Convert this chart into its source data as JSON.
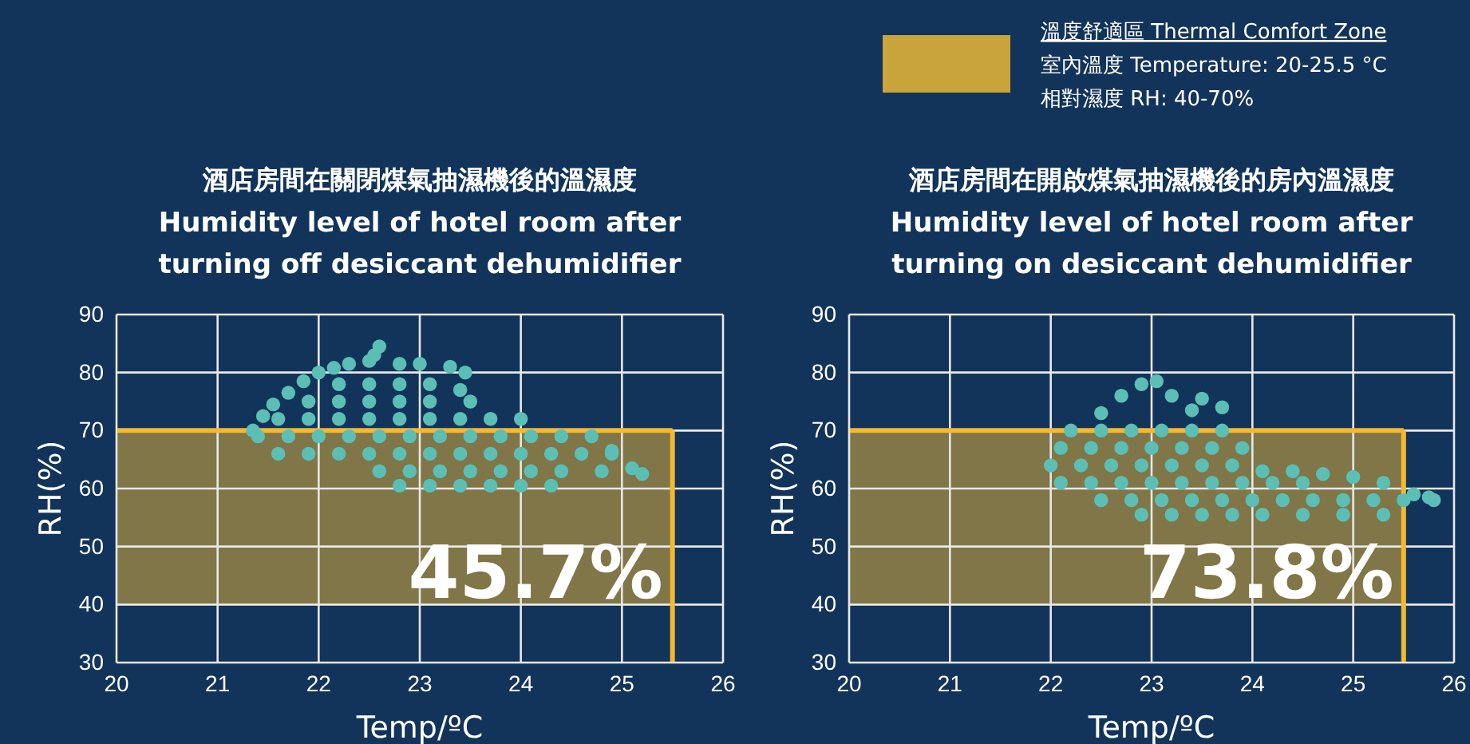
{
  "chart_data": [
    {
      "type": "scatter",
      "title": "酒店房間在關閉煤氣抽濕機後的溫濕度",
      "subtitle": "Humidity level of hotel room after\nturning off desiccant dehumidifier",
      "xlabel": "Temp/ºC",
      "ylabel": "RH(%)",
      "xlim": [
        20,
        26
      ],
      "ylim": [
        30,
        90
      ],
      "xticks": [
        20,
        21,
        22,
        23,
        24,
        25,
        26
      ],
      "yticks": [
        30,
        40,
        50,
        60,
        70,
        80,
        90
      ],
      "grid": true,
      "marker": "circle",
      "bands": [
        {
          "axis": "y",
          "from": 40,
          "to": 70,
          "color": "#c9a43a"
        }
      ],
      "ref_lines": [
        {
          "axis": "x",
          "value": 25.5,
          "color": "#f5b82e"
        },
        {
          "axis": "y",
          "value": 70,
          "color": "#f5b82e"
        }
      ],
      "annotations": [
        "45.7%"
      ],
      "series": [
        {
          "color": "#5bbfb5",
          "x": [
            21.35,
            21.45,
            21.55,
            21.7,
            21.85,
            22.0,
            22.15,
            22.3,
            22.5,
            22.6,
            22.55,
            22.8,
            23.0,
            23.3,
            23.45,
            23.4,
            23.5,
            22.2,
            22.5,
            22.8,
            23.1,
            21.9,
            22.2,
            22.5,
            22.8,
            23.1,
            21.6,
            21.9,
            22.2,
            22.5,
            22.8,
            23.1,
            23.4,
            23.7,
            24.0,
            21.4,
            21.7,
            22.0,
            22.3,
            22.6,
            22.9,
            23.2,
            23.5,
            23.8,
            24.1,
            24.4,
            24.7,
            21.6,
            21.9,
            22.2,
            22.5,
            22.8,
            23.1,
            23.4,
            23.7,
            24.0,
            24.3,
            24.6,
            24.9,
            22.6,
            22.9,
            23.2,
            23.5,
            23.8,
            24.1,
            24.4,
            24.8,
            25.2,
            22.8,
            23.1,
            23.4,
            23.7,
            24.0,
            24.3,
            24.9,
            25.1
          ],
          "values": [
            70,
            72.5,
            74.5,
            76.5,
            78.5,
            80,
            80.8,
            81.5,
            82,
            84.5,
            83,
            81.5,
            81.5,
            81,
            80,
            77,
            75,
            78,
            78,
            78,
            78,
            75,
            75,
            75,
            75,
            75,
            72,
            72,
            72,
            72,
            72,
            72,
            72,
            72,
            72,
            69,
            69,
            69,
            69,
            69,
            69,
            69,
            69,
            69,
            69,
            69,
            69,
            66,
            66,
            66,
            66,
            66,
            66,
            66,
            66,
            66,
            66,
            66,
            66,
            63,
            63,
            63,
            63,
            63,
            63,
            63,
            63,
            62.5,
            60.5,
            60.5,
            60.5,
            60.5,
            60.5,
            60.5,
            66.5,
            63.5
          ]
        }
      ]
    },
    {
      "type": "scatter",
      "title": "酒店房間在開啟煤氣抽濕機後的房內溫濕度",
      "subtitle": "Humidity level of hotel room after\nturning on desiccant dehumidifier",
      "xlabel": "Temp/ºC",
      "ylabel": "RH(%)",
      "xlim": [
        20,
        26
      ],
      "ylim": [
        30,
        90
      ],
      "xticks": [
        20,
        21,
        22,
        23,
        24,
        25,
        26
      ],
      "yticks": [
        30,
        40,
        50,
        60,
        70,
        80,
        90
      ],
      "grid": true,
      "marker": "circle",
      "bands": [
        {
          "axis": "y",
          "from": 40,
          "to": 70,
          "color": "#c9a43a"
        }
      ],
      "ref_lines": [
        {
          "axis": "x",
          "value": 25.5,
          "color": "#f5b82e"
        },
        {
          "axis": "y",
          "value": 70,
          "color": "#f5b82e"
        }
      ],
      "annotations": [
        "73.8%",
        "溫度舒適區 Thermal Comfort Zone",
        "室內溫度 Temperature: 20-25.5 °C",
        "相對濕度 RH: 40-70%"
      ],
      "series": [
        {
          "color": "#5bbfb5",
          "x": [
            22.5,
            22.7,
            22.9,
            23.05,
            23.2,
            23.5,
            23.7,
            23.4,
            22.2,
            22.5,
            22.8,
            23.1,
            23.4,
            23.7,
            22.1,
            22.4,
            22.7,
            23.0,
            23.3,
            23.6,
            23.9,
            22.0,
            22.3,
            22.6,
            22.9,
            23.2,
            23.5,
            23.8,
            24.1,
            24.4,
            24.7,
            25.0,
            25.3,
            22.1,
            22.4,
            22.7,
            23.0,
            23.3,
            23.6,
            23.9,
            24.2,
            24.5,
            22.5,
            22.8,
            23.1,
            23.4,
            23.7,
            24.0,
            24.3,
            24.6,
            24.9,
            25.2,
            25.5,
            25.8,
            22.9,
            23.2,
            23.5,
            23.8,
            24.1,
            24.5,
            24.9,
            25.3,
            25.6,
            25.75
          ],
          "values": [
            73,
            76,
            78,
            78.5,
            76,
            75.5,
            74,
            73.5,
            70,
            70,
            70,
            70,
            70,
            70,
            67,
            67,
            67,
            67,
            67,
            67,
            67,
            64,
            64,
            64,
            64,
            64,
            64,
            64,
            63,
            63,
            62.5,
            62,
            61,
            61,
            61,
            61,
            61,
            61,
            61,
            61,
            61,
            61,
            58,
            58,
            58,
            58,
            58,
            58,
            58,
            58,
            58,
            58,
            58,
            58,
            55.5,
            55.5,
            55.5,
            55.5,
            55.5,
            55.5,
            55.5,
            55.5,
            59,
            58.5
          ]
        }
      ]
    }
  ]
}
